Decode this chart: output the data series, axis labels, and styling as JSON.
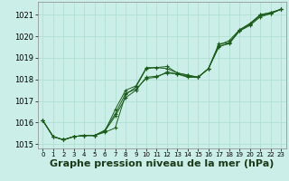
{
  "background_color": "#cceee8",
  "grid_color": "#aaddcc",
  "line_color": "#1a5c1a",
  "xlabel": "Graphe pression niveau de la mer (hPa)",
  "xlabel_fontsize": 8,
  "xlim": [
    -0.5,
    23.5
  ],
  "ylim": [
    1014.8,
    1021.6
  ],
  "yticks": [
    1015,
    1016,
    1017,
    1018,
    1019,
    1020,
    1021
  ],
  "xticks": [
    0,
    1,
    2,
    3,
    4,
    5,
    6,
    7,
    8,
    9,
    10,
    11,
    12,
    13,
    14,
    15,
    16,
    17,
    18,
    19,
    20,
    21,
    22,
    23
  ],
  "series1": {
    "x": [
      0,
      1,
      2,
      3,
      4,
      5,
      6,
      7,
      8,
      9,
      10,
      11,
      12,
      13,
      14,
      15,
      16,
      17,
      18,
      19,
      20,
      21,
      22,
      23
    ],
    "y": [
      1016.1,
      1015.35,
      1015.2,
      1015.35,
      1015.4,
      1015.4,
      1015.55,
      1015.75,
      1017.3,
      1017.65,
      1018.5,
      1018.55,
      1018.5,
      1018.3,
      1018.2,
      1018.1,
      1018.5,
      1019.65,
      1019.7,
      1020.3,
      1020.6,
      1021.0,
      1021.1,
      1021.25
    ]
  },
  "series2": {
    "x": [
      0,
      1,
      2,
      3,
      4,
      5,
      6,
      7,
      8,
      9,
      10,
      11,
      12,
      13,
      14,
      15,
      16,
      17,
      18,
      19,
      20,
      21,
      22,
      23
    ],
    "y": [
      1016.1,
      1015.35,
      1015.2,
      1015.35,
      1015.4,
      1015.4,
      1015.6,
      1016.3,
      1017.15,
      1017.5,
      1018.1,
      1018.15,
      1018.3,
      1018.25,
      1018.15,
      1018.1,
      1018.5,
      1019.55,
      1019.65,
      1020.25,
      1020.55,
      1020.95,
      1021.05,
      1021.25
    ]
  },
  "series3": {
    "x": [
      0,
      1,
      2,
      3,
      4,
      5,
      6,
      7,
      8,
      9,
      10,
      11,
      12,
      13,
      14,
      15,
      16,
      17,
      18,
      19,
      20,
      21,
      22,
      23
    ],
    "y": [
      1016.1,
      1015.35,
      1015.2,
      1015.35,
      1015.4,
      1015.4,
      1015.6,
      1016.6,
      1017.5,
      1017.7,
      1018.55,
      1018.55,
      1018.6,
      1018.3,
      1018.2,
      1018.1,
      1018.5,
      1019.6,
      1019.8,
      1020.3,
      1020.55,
      1021.0,
      1021.1,
      1021.25
    ]
  },
  "series4": {
    "x": [
      0,
      1,
      2,
      3,
      4,
      5,
      6,
      7,
      8,
      9,
      10,
      11,
      12,
      13,
      14,
      15,
      16,
      17,
      18,
      19,
      20,
      21,
      22,
      23
    ],
    "y": [
      1016.1,
      1015.35,
      1015.2,
      1015.35,
      1015.4,
      1015.4,
      1015.65,
      1016.4,
      1017.35,
      1017.55,
      1018.05,
      1018.1,
      1018.35,
      1018.25,
      1018.1,
      1018.1,
      1018.5,
      1019.5,
      1019.7,
      1020.25,
      1020.5,
      1020.9,
      1021.05,
      1021.25
    ]
  }
}
